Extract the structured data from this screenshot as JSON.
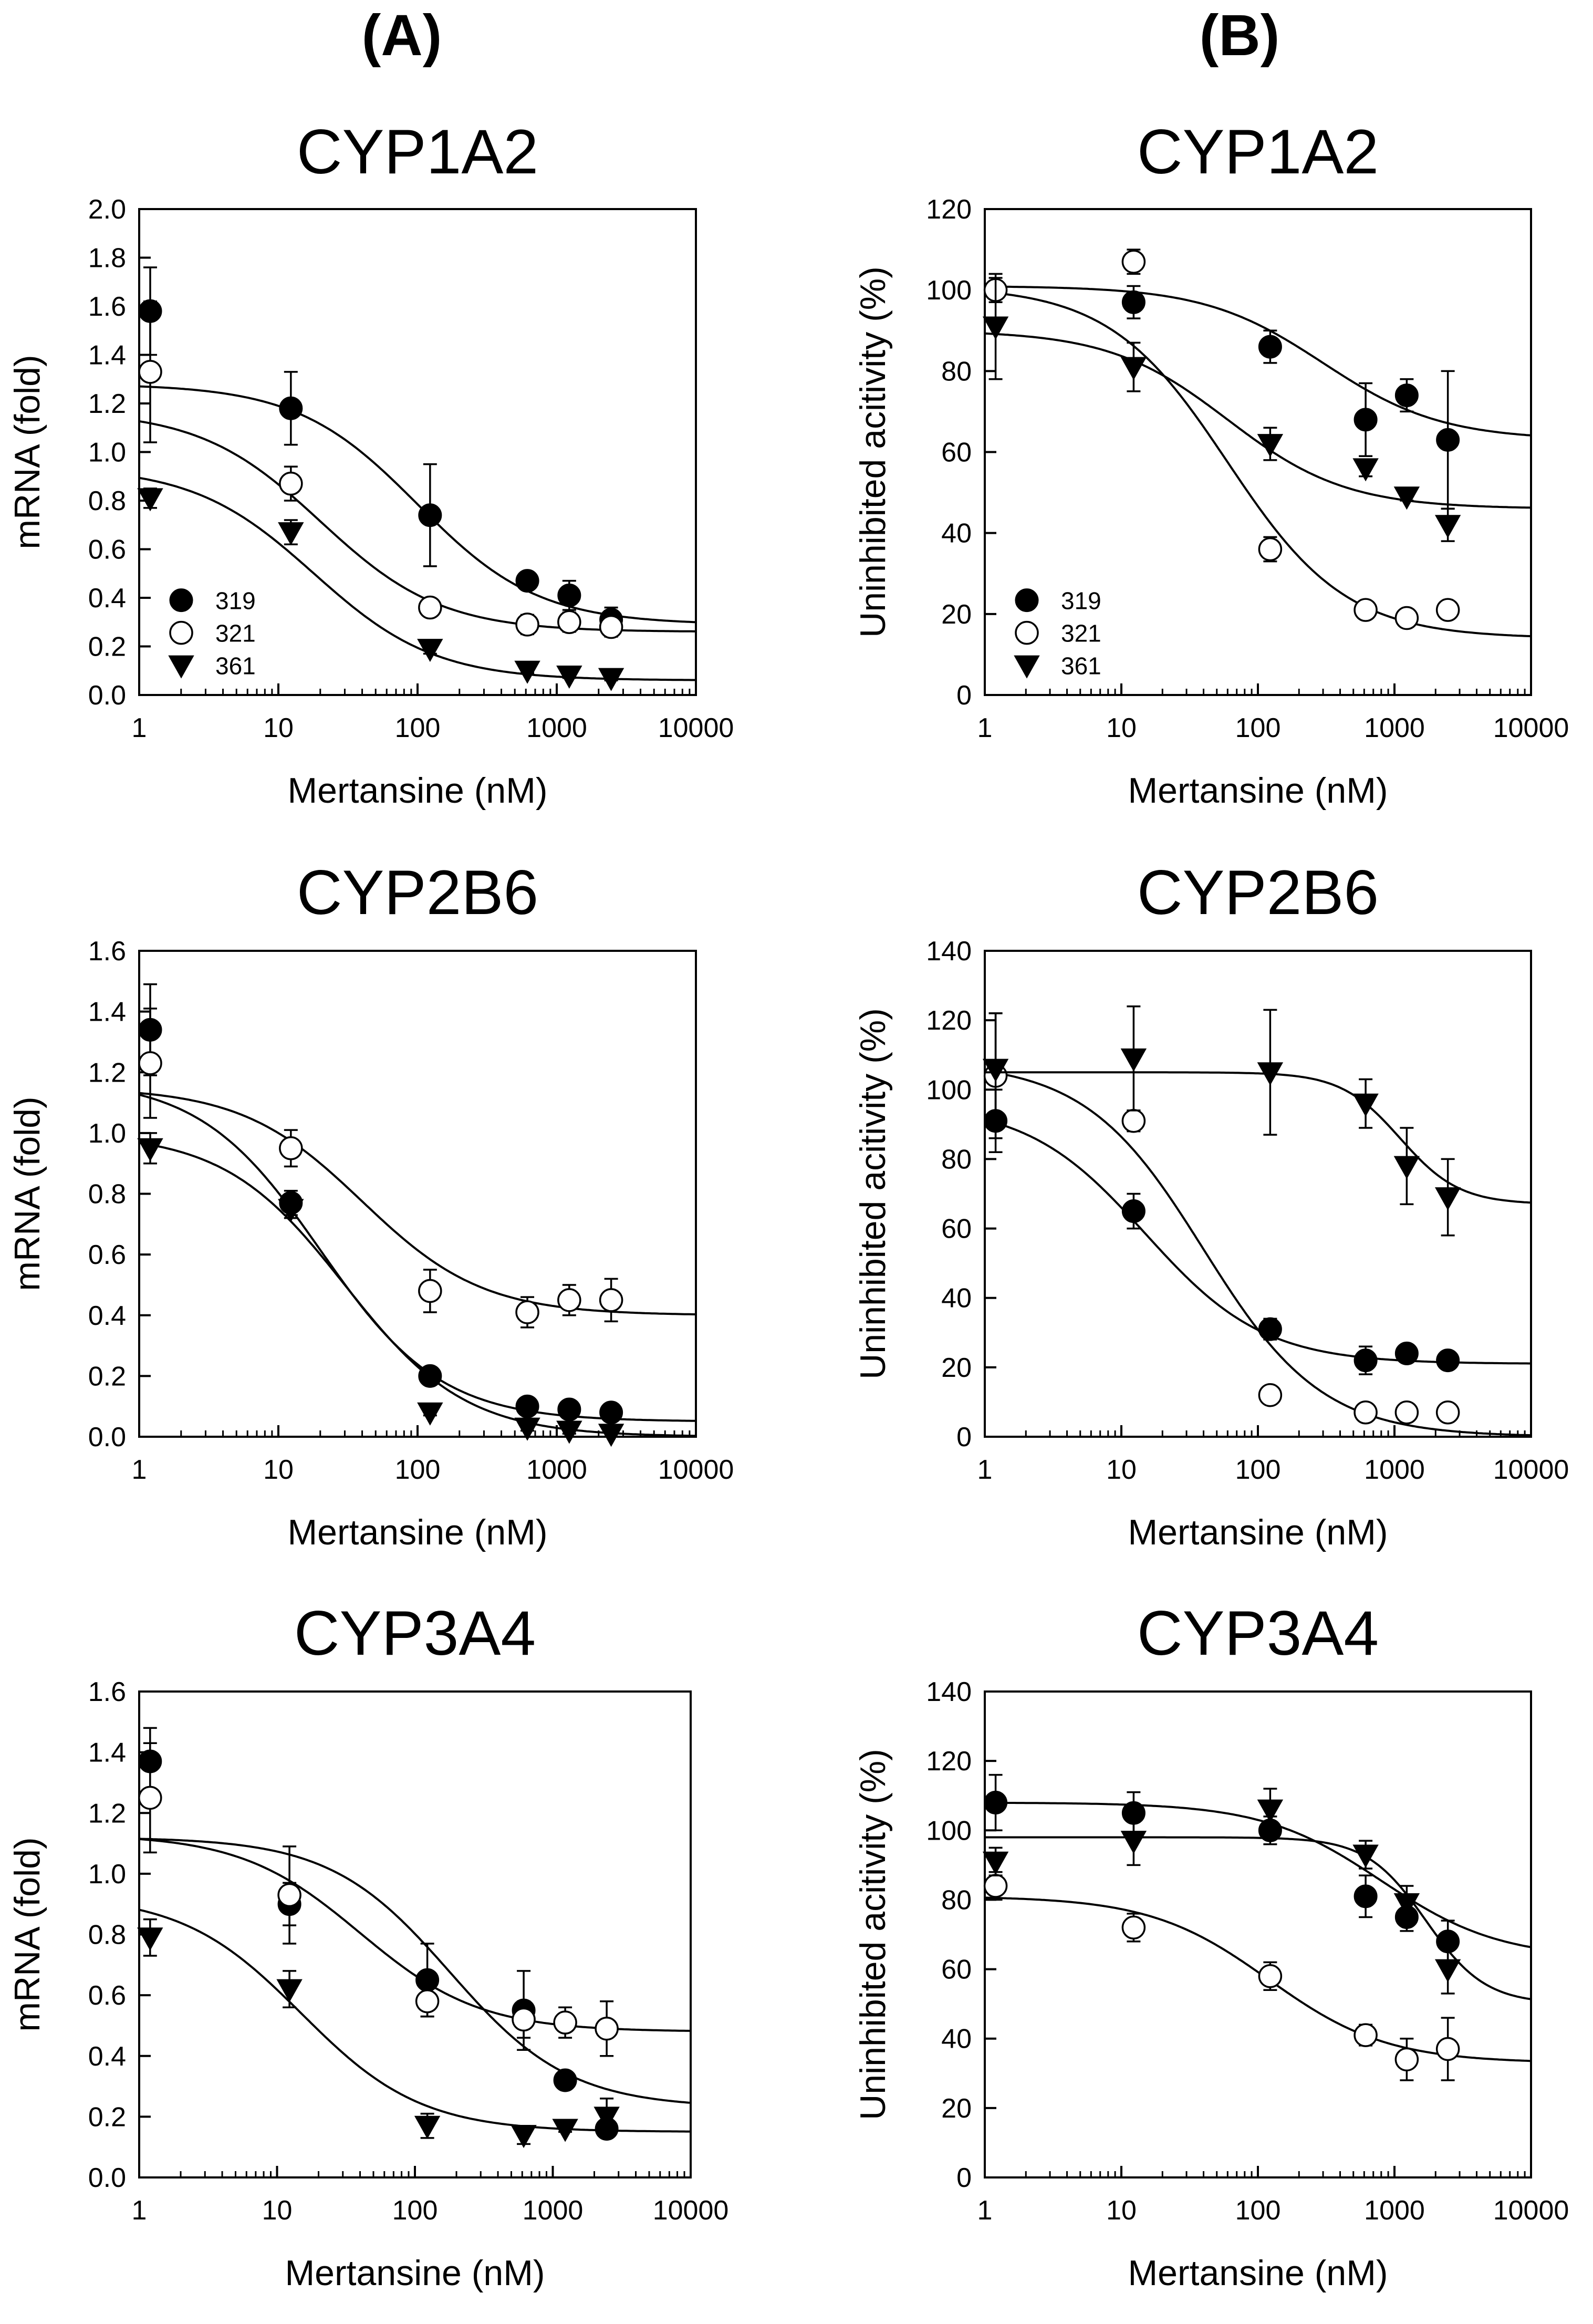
{
  "columns": [
    {
      "label": "(A)"
    },
    {
      "label": "(B)"
    }
  ],
  "legend": {
    "series": [
      "319",
      "321",
      "361"
    ]
  },
  "chart_data": [
    {
      "type": "scatter",
      "title": "CYP1A2",
      "xlabel": "Mertansine (nM)",
      "ylabel": "mRNA (fold)",
      "xscale": "log",
      "xlim": [
        1,
        10000
      ],
      "ylim": [
        0,
        2.0
      ],
      "xticks": [
        "1",
        "10",
        "100",
        "1000",
        "10000"
      ],
      "yticks": [
        "0.0",
        "0.2",
        "0.4",
        "0.6",
        "0.8",
        "1.0",
        "1.2",
        "1.4",
        "1.6",
        "1.8",
        "2.0"
      ],
      "ytick_values": [
        0,
        0.2,
        0.4,
        0.6,
        0.8,
        1.0,
        1.2,
        1.4,
        1.6,
        1.8,
        2.0
      ],
      "legend": {
        "show": true,
        "position": "bottom-left"
      },
      "series": [
        {
          "name": "319",
          "marker": "filled-circle",
          "x": [
            1.2,
            12.3,
            123,
            615,
            1230,
            2460
          ],
          "y": [
            1.58,
            1.18,
            0.74,
            0.47,
            0.41,
            0.31
          ],
          "err": [
            0.18,
            0.15,
            0.21,
            0.03,
            0.06,
            0.05
          ],
          "fit": {
            "top": 1.28,
            "bottom": 0.29,
            "ec50": 100,
            "hill": 1
          }
        },
        {
          "name": "321",
          "marker": "open-circle",
          "x": [
            1.2,
            12.3,
            123,
            615,
            1230,
            2460
          ],
          "y": [
            1.33,
            0.87,
            0.36,
            0.29,
            0.3,
            0.28
          ],
          "err": [
            0.29,
            0.07,
            0.02,
            0.04,
            0.04,
            0.04
          ],
          "fit": {
            "top": 1.17,
            "bottom": 0.26,
            "ec50": 20,
            "hill": 1
          }
        },
        {
          "name": "361",
          "marker": "filled-triangle-down",
          "x": [
            1.2,
            12.3,
            123,
            615,
            1230,
            2460
          ],
          "y": [
            0.81,
            0.67,
            0.19,
            0.1,
            0.08,
            0.07
          ],
          "err": [
            0.04,
            0.05,
            0.02,
            0.01,
            0.01,
            0.01
          ],
          "fit": {
            "top": 0.94,
            "bottom": 0.06,
            "ec50": 18,
            "hill": 1
          }
        }
      ]
    },
    {
      "type": "scatter",
      "title": "CYP1A2",
      "xlabel": "Mertansine (nM)",
      "ylabel": "Uninhibited acitivity (%)",
      "xscale": "log",
      "xlim": [
        1,
        10000
      ],
      "ylim": [
        0,
        120
      ],
      "xticks": [
        "1",
        "10",
        "100",
        "1000",
        "10000"
      ],
      "yticks": [
        "0",
        "20",
        "40",
        "60",
        "80",
        "100",
        "120"
      ],
      "ytick_values": [
        0,
        20,
        40,
        60,
        80,
        100,
        120
      ],
      "legend": {
        "show": true,
        "position": "bottom-left"
      },
      "series": [
        {
          "name": "319",
          "marker": "filled-circle",
          "x": [
            12.3,
            123,
            615,
            1230,
            2460
          ],
          "y": [
            97,
            86,
            68,
            74,
            63
          ],
          "err": [
            4,
            4,
            9,
            4,
            17
          ],
          "fit": {
            "top": 101,
            "bottom": 63,
            "ec50": 300,
            "hill": 1
          }
        },
        {
          "name": "321",
          "marker": "open-circle",
          "x": [
            1.2,
            12.3,
            123,
            615,
            1230,
            2460
          ],
          "y": [
            100,
            107,
            36,
            21,
            19,
            21
          ],
          "err": [
            3,
            3,
            3,
            1,
            1,
            1
          ],
          "fit": {
            "top": 101,
            "bottom": 14,
            "ec50": 60,
            "hill": 1
          }
        },
        {
          "name": "361",
          "marker": "filled-triangle-down",
          "x": [
            1.2,
            12.3,
            123,
            615,
            1230,
            2460
          ],
          "y": [
            91,
            81,
            62,
            56,
            49,
            42
          ],
          "err": [
            13,
            6,
            4,
            2,
            1,
            4
          ],
          "fit": {
            "top": 90,
            "bottom": 46,
            "ec50": 60,
            "hill": 1
          }
        }
      ]
    },
    {
      "type": "scatter",
      "title": "CYP2B6",
      "xlabel": "Mertansine (nM)",
      "ylabel": "mRNA (fold)",
      "xscale": "log",
      "xlim": [
        1,
        10000
      ],
      "ylim": [
        0,
        1.6
      ],
      "xticks": [
        "1",
        "10",
        "100",
        "1000",
        "10000"
      ],
      "yticks": [
        "0.0",
        "0.2",
        "0.4",
        "0.6",
        "0.8",
        "1.0",
        "1.2",
        "1.4",
        "1.6"
      ],
      "ytick_values": [
        0,
        0.2,
        0.4,
        0.6,
        0.8,
        1.0,
        1.2,
        1.4,
        1.6
      ],
      "legend": {
        "show": false
      },
      "series": [
        {
          "name": "319",
          "marker": "filled-circle",
          "x": [
            1.2,
            12.3,
            123,
            615,
            1230,
            2460
          ],
          "y": [
            1.34,
            0.77,
            0.2,
            0.1,
            0.09,
            0.08
          ],
          "err": [
            0.15,
            0.04,
            0.02,
            0.01,
            0.01,
            0.01
          ],
          "fit": {
            "top": 1.18,
            "bottom": 0.05,
            "ec50": 20,
            "hill": 1
          }
        },
        {
          "name": "321",
          "marker": "open-circle",
          "x": [
            1.2,
            12.3,
            123,
            615,
            1230,
            2460
          ],
          "y": [
            1.23,
            0.95,
            0.48,
            0.41,
            0.45,
            0.45
          ],
          "err": [
            0.18,
            0.06,
            0.07,
            0.05,
            0.05,
            0.07
          ],
          "fit": {
            "top": 1.15,
            "bottom": 0.4,
            "ec50": 40,
            "hill": 1
          }
        },
        {
          "name": "361",
          "marker": "filled-triangle-down",
          "x": [
            1.2,
            12.3,
            123,
            615,
            1230,
            2460
          ],
          "y": [
            0.95,
            0.75,
            0.08,
            0.03,
            0.02,
            0.01
          ],
          "err": [
            0.05,
            0.03,
            0.01,
            0.01,
            0.01,
            0.01
          ],
          "fit": {
            "top": 1.0,
            "bottom": 0.0,
            "ec50": 30,
            "hill": 1
          }
        }
      ]
    },
    {
      "type": "scatter",
      "title": "CYP2B6",
      "xlabel": "Mertansine (nM)",
      "ylabel": "Uninhibited acitivity (%)",
      "xscale": "log",
      "xlim": [
        1,
        10000
      ],
      "ylim": [
        0,
        140
      ],
      "xticks": [
        "1",
        "10",
        "100",
        "1000",
        "10000"
      ],
      "yticks": [
        "0",
        "20",
        "40",
        "60",
        "80",
        "100",
        "120",
        "140"
      ],
      "ytick_values": [
        0,
        20,
        40,
        60,
        80,
        100,
        120,
        140
      ],
      "legend": {
        "show": false
      },
      "series": [
        {
          "name": "319",
          "marker": "filled-circle",
          "x": [
            1.2,
            12.3,
            123,
            615,
            1230,
            2460
          ],
          "y": [
            91,
            65,
            31,
            22,
            24,
            22
          ],
          "err": [
            9,
            5,
            3,
            4,
            2,
            2
          ],
          "fit": {
            "top": 96,
            "bottom": 21,
            "ec50": 15,
            "hill": 1
          }
        },
        {
          "name": "321",
          "marker": "open-circle",
          "x": [
            1.2,
            12.3,
            123,
            615,
            1230,
            2460
          ],
          "y": [
            104,
            91,
            12,
            7,
            7,
            7
          ],
          "err": [
            18,
            3,
            1,
            1,
            1,
            1
          ],
          "fit": {
            "top": 108,
            "bottom": 0,
            "ec50": 40,
            "hill": 1
          }
        },
        {
          "name": "361",
          "marker": "filled-triangle-down",
          "x": [
            1.2,
            12.3,
            123,
            615,
            1230,
            2460
          ],
          "y": [
            106,
            109,
            105,
            96,
            78,
            69
          ],
          "err": [
            16,
            15,
            18,
            7,
            11,
            11
          ],
          "fit": {
            "top": 105,
            "bottom": 67,
            "ec50": 1100,
            "hill": 2
          }
        }
      ]
    },
    {
      "type": "scatter",
      "title": "CYP3A4",
      "xlabel": "Mertansine (nM)",
      "ylabel": "mRNA (fold)",
      "xscale": "log",
      "xlim": [
        1,
        10000
      ],
      "ylim": [
        0,
        1.6
      ],
      "xticks": [
        "1",
        "10",
        "100",
        "1000",
        "10000"
      ],
      "yticks": [
        "0.0",
        "0.2",
        "0.4",
        "0.6",
        "0.8",
        "1.0",
        "1.2",
        "1.4",
        "1.6"
      ],
      "ytick_values": [
        0,
        0.2,
        0.4,
        0.6,
        0.8,
        1.0,
        1.2,
        1.4,
        1.6
      ],
      "legend": {
        "show": false
      },
      "series": [
        {
          "name": "319",
          "marker": "filled-circle",
          "x": [
            1.2,
            12.3,
            123,
            615,
            1230,
            2460
          ],
          "y": [
            1.37,
            0.9,
            0.65,
            0.55,
            0.32,
            0.16
          ],
          "err": [
            0.11,
            0.07,
            0.12,
            0.13,
            0.02,
            0.02
          ],
          "fit": {
            "top": 1.12,
            "bottom": 0.23,
            "ec50": 180,
            "hill": 1
          }
        },
        {
          "name": "321",
          "marker": "open-circle",
          "x": [
            1.2,
            12.3,
            123,
            615,
            1230,
            2460
          ],
          "y": [
            1.25,
            0.93,
            0.58,
            0.52,
            0.51,
            0.49
          ],
          "err": [
            0.18,
            0.16,
            0.05,
            0.06,
            0.05,
            0.09
          ],
          "fit": {
            "top": 1.13,
            "bottom": 0.48,
            "ec50": 40,
            "hill": 1
          }
        },
        {
          "name": "361",
          "marker": "filled-triangle-down",
          "x": [
            1.2,
            12.3,
            123,
            615,
            1230,
            2460
          ],
          "y": [
            0.79,
            0.62,
            0.17,
            0.14,
            0.16,
            0.2
          ],
          "err": [
            0.06,
            0.06,
            0.04,
            0.03,
            0.01,
            0.06
          ],
          "fit": {
            "top": 0.93,
            "bottom": 0.15,
            "ec50": 15,
            "hill": 1
          }
        }
      ]
    },
    {
      "type": "scatter",
      "title": "CYP3A4",
      "xlabel": "Mertansine (nM)",
      "ylabel": "Uninhibited acitivity (%)",
      "xscale": "log",
      "xlim": [
        1,
        10000
      ],
      "ylim": [
        0,
        140
      ],
      "xticks": [
        "1",
        "10",
        "100",
        "1000",
        "10000"
      ],
      "yticks": [
        "0",
        "20",
        "40",
        "60",
        "80",
        "100",
        "120",
        "140"
      ],
      "ytick_values": [
        0,
        20,
        40,
        60,
        80,
        100,
        120,
        140
      ],
      "legend": {
        "show": false
      },
      "series": [
        {
          "name": "319",
          "marker": "filled-circle",
          "x": [
            1.2,
            12.3,
            123,
            615,
            1230,
            2460
          ],
          "y": [
            108,
            105,
            100,
            81,
            75,
            68
          ],
          "err": [
            8,
            6,
            4,
            6,
            4,
            6
          ],
          "fit": {
            "top": 108,
            "bottom": 63,
            "ec50": 800,
            "hill": 1
          }
        },
        {
          "name": "321",
          "marker": "open-circle",
          "x": [
            1.2,
            12.3,
            123,
            615,
            1230,
            2460
          ],
          "y": [
            84,
            72,
            58,
            41,
            34,
            37
          ],
          "err": [
            4,
            4,
            4,
            3,
            6,
            9
          ],
          "fit": {
            "top": 81,
            "bottom": 33,
            "ec50": 120,
            "hill": 1
          }
        },
        {
          "name": "361",
          "marker": "filled-triangle-down",
          "x": [
            1.2,
            12.3,
            123,
            615,
            1230,
            2460
          ],
          "y": [
            91,
            97,
            106,
            93,
            79,
            60
          ],
          "err": [
            4,
            7,
            6,
            4,
            5,
            7
          ],
          "fit": {
            "top": 98,
            "bottom": 50,
            "ec50": 1700,
            "hill": 2
          }
        }
      ]
    }
  ]
}
